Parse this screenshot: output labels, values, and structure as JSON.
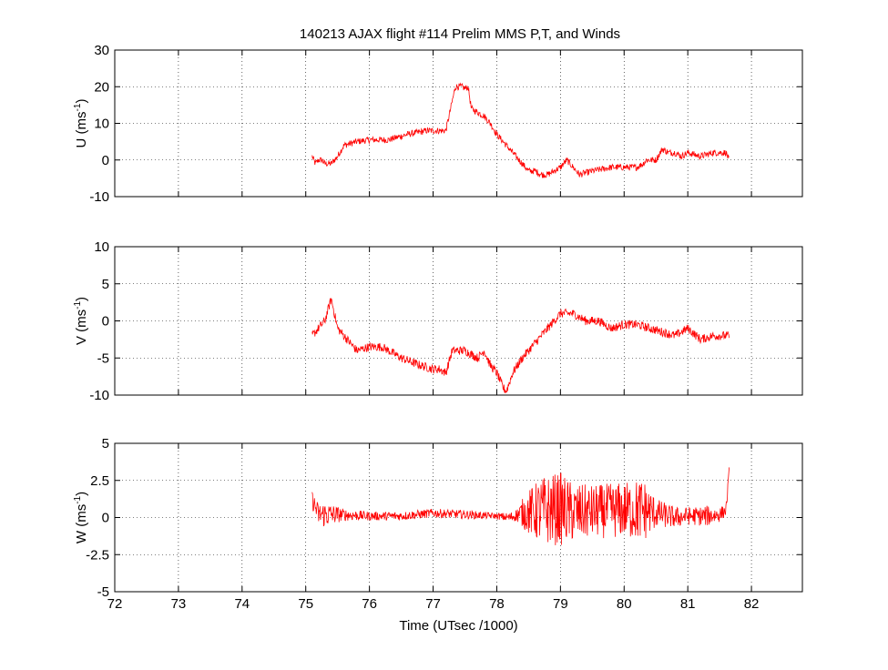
{
  "chart_data": [
    {
      "type": "line",
      "title": "140213 AJAX flight #114 Prelim MMS P,T, and Winds",
      "ylabel": "U (ms",
      "ylabel_sup": "-1",
      "ylabel_close": ")",
      "xlim": [
        72,
        82.8
      ],
      "ylim": [
        -10,
        30
      ],
      "xticks": [
        72,
        73,
        74,
        75,
        76,
        77,
        78,
        79,
        80,
        81,
        82
      ],
      "yticks": [
        -10,
        0,
        10,
        20,
        30
      ],
      "ytick_labels": [
        "-10",
        "0",
        "10",
        "20",
        "30"
      ],
      "grid": true,
      "color": "#ff0000",
      "noise": 0.9,
      "series": [
        {
          "x": [
            75.1,
            75.15,
            75.2,
            75.25,
            75.3,
            75.35,
            75.4,
            75.5,
            75.6,
            75.8,
            76.0,
            76.3,
            76.6,
            76.9,
            77.1,
            77.15,
            77.2,
            77.3,
            77.35,
            77.45,
            77.5,
            77.55,
            77.6,
            77.7,
            77.8,
            77.9,
            78.0,
            78.1,
            78.2,
            78.3,
            78.4,
            78.5,
            78.6,
            78.7,
            78.8,
            78.9,
            79.0,
            79.1,
            79.2,
            79.3,
            79.5,
            79.8,
            80.0,
            80.2,
            80.3,
            80.35,
            80.5,
            80.6,
            80.7,
            80.8,
            80.9,
            81.0,
            81.2,
            81.4,
            81.6,
            81.65
          ],
          "values": [
            1,
            -1,
            0,
            0,
            -1,
            -1,
            -1,
            1,
            4,
            5,
            5.5,
            5.5,
            7,
            8,
            8,
            8,
            8,
            16,
            20,
            20,
            19.5,
            20,
            14,
            13,
            12,
            10,
            7,
            5,
            3,
            1,
            -1,
            -3,
            -3,
            -4,
            -4,
            -3,
            -2,
            0,
            -2,
            -4,
            -3,
            -2,
            -2,
            -2,
            -1,
            0,
            0,
            3,
            2,
            2,
            1,
            2,
            1,
            2,
            2,
            0
          ]
        }
      ]
    },
    {
      "type": "line",
      "ylabel": "V (ms",
      "ylabel_sup": "-1",
      "ylabel_close": ")",
      "xlim": [
        72,
        82.8
      ],
      "ylim": [
        -10,
        10
      ],
      "xticks": [
        72,
        73,
        74,
        75,
        76,
        77,
        78,
        79,
        80,
        81,
        82
      ],
      "yticks": [
        -10,
        -5,
        0,
        5,
        10
      ],
      "ytick_labels": [
        "-10",
        "-5",
        "0",
        "5",
        "10"
      ],
      "grid": true,
      "color": "#ff0000",
      "noise": 0.6,
      "series": [
        {
          "x": [
            75.1,
            75.2,
            75.3,
            75.4,
            75.5,
            75.6,
            75.7,
            75.8,
            76.0,
            76.2,
            76.5,
            76.8,
            77.0,
            77.1,
            77.2,
            77.3,
            77.5,
            77.7,
            77.8,
            77.9,
            78.0,
            78.1,
            78.15,
            78.25,
            78.4,
            78.6,
            78.8,
            79.0,
            79.2,
            79.4,
            79.6,
            79.8,
            80.0,
            80.2,
            80.4,
            80.6,
            80.8,
            81.0,
            81.2,
            81.4,
            81.6,
            81.65
          ],
          "values": [
            -2,
            -1,
            0,
            3,
            -1,
            -2,
            -3,
            -4,
            -3.5,
            -3.5,
            -5,
            -6,
            -6.5,
            -6.5,
            -7,
            -4,
            -4,
            -5,
            -4,
            -6,
            -7,
            -9,
            -9.5,
            -7,
            -5,
            -3,
            -1,
            1,
            1,
            0,
            0,
            -1,
            -0.5,
            -0.5,
            -1,
            -1.5,
            -2,
            -1,
            -2.5,
            -2,
            -2,
            -2
          ]
        }
      ]
    },
    {
      "type": "line",
      "ylabel": "W (ms",
      "ylabel_sup": "-1",
      "ylabel_close": ")",
      "xlabel": "Time (UTsec /1000)",
      "xlim": [
        72,
        82.8
      ],
      "ylim": [
        -5,
        5
      ],
      "xticks": [
        72,
        73,
        74,
        75,
        76,
        77,
        78,
        79,
        80,
        81,
        82
      ],
      "xtick_labels": [
        "72",
        "73",
        "74",
        "75",
        "76",
        "77",
        "78",
        "79",
        "80",
        "81",
        "82"
      ],
      "yticks": [
        -5,
        -2.5,
        0,
        2.5,
        5
      ],
      "ytick_labels": [
        "-5",
        "-2.5",
        "0",
        "2.5",
        "5"
      ],
      "grid": true,
      "color": "#ff0000",
      "noise": 0.3,
      "series": [
        {
          "x": [
            75.1,
            75.2,
            75.5,
            76.0,
            76.5,
            77.0,
            77.5,
            78.0,
            78.2,
            78.4,
            78.6,
            78.8,
            79.0,
            79.2,
            79.5,
            80.0,
            80.3,
            80.5,
            80.8,
            81.0,
            81.3,
            81.5,
            81.6,
            81.65
          ],
          "values": [
            1.2,
            0.2,
            0.2,
            0.1,
            0.1,
            0.3,
            0.2,
            0.1,
            0,
            0.3,
            0.4,
            0.5,
            0.6,
            0.3,
            0.4,
            0.5,
            0.5,
            0.3,
            0,
            0.1,
            0.1,
            0.2,
            0.5,
            3
          ]
        }
      ],
      "variance": {
        "x": [
          75.1,
          75.3,
          75.6,
          76.0,
          76.5,
          77.0,
          77.5,
          78.0,
          78.3,
          78.5,
          78.7,
          79.0,
          79.2,
          79.5,
          80.0,
          80.3,
          80.5,
          80.7,
          81.0,
          81.3,
          81.6
        ],
        "amp": [
          0.6,
          0.9,
          0.4,
          0.3,
          0.3,
          0.3,
          0.3,
          0.2,
          0.4,
          1.5,
          2.3,
          2.5,
          2.0,
          1.8,
          1.9,
          2.2,
          1.0,
          0.8,
          0.6,
          0.7,
          0.4
        ]
      }
    }
  ]
}
